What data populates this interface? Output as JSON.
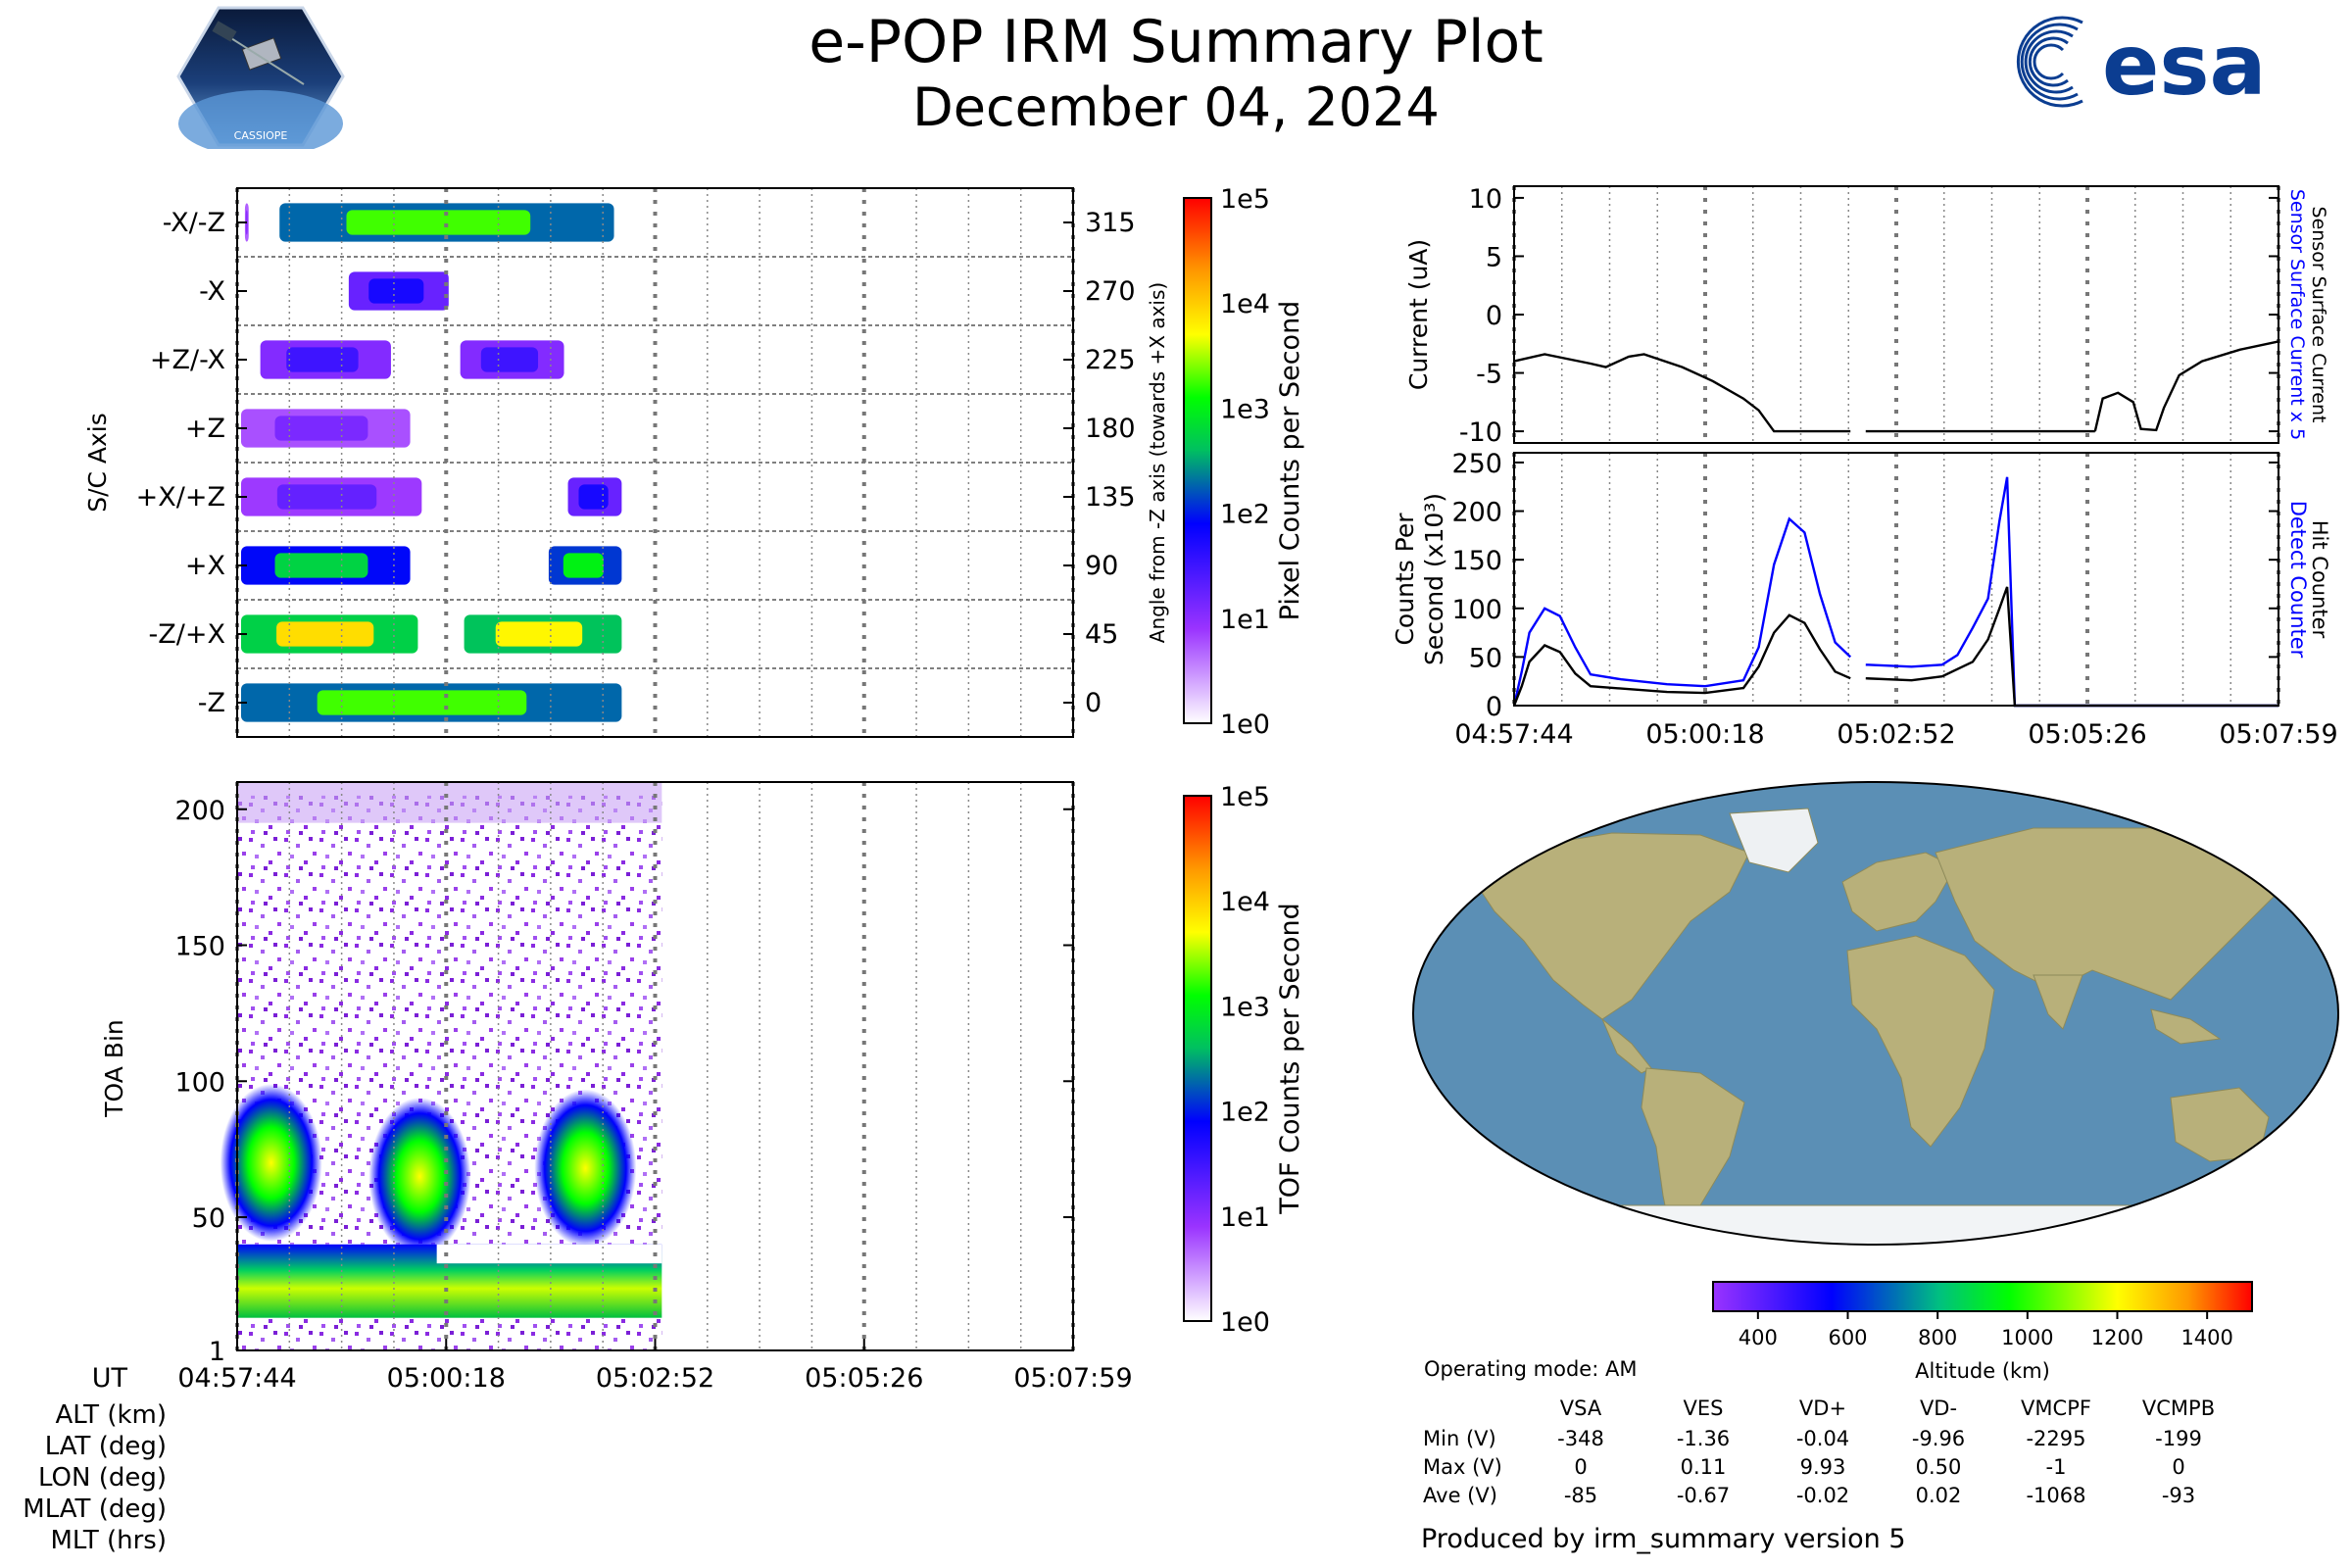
{
  "title": "e-POP IRM Summary Plot",
  "date": "December 04, 2024",
  "logo_left": "CASSIOPE",
  "logo_right": "esa",
  "colors": {
    "blue_line": "#0000ff",
    "black_line": "#000000",
    "ocean": "#5b8fb5",
    "land": "#b8b07a",
    "ice": "#f2f4f6"
  },
  "chart_data": [
    {
      "id": "pixel-spectrogram",
      "type": "heatmap",
      "ylabel": "S/C Axis",
      "ylabel_right": "Angle from -Z axis (towards +X axis)",
      "y_ticks_left": [
        "-X/-Z",
        "-X",
        "+Z/-X",
        "+Z",
        "+X/+Z",
        "+X",
        "-Z/+X",
        "-Z"
      ],
      "y_ticks_right": [
        "315",
        "270",
        "225",
        "180",
        "135",
        "90",
        "45",
        "0"
      ],
      "colorbar_label": "Pixel Counts per Second",
      "colorbar_ticks": [
        "1e5",
        "1e4",
        "1e3",
        "1e2",
        "1e1",
        "1e0"
      ],
      "rows": [
        {
          "axis": "-X/-Z",
          "intervals": [
            [
              0.01,
              0.03,
              0.2
            ],
            [
              0.1,
              0.98,
              0.65
            ]
          ]
        },
        {
          "axis": "-X",
          "intervals": [
            [
              0.28,
              0.55,
              0.35
            ]
          ]
        },
        {
          "axis": "+Z/-X",
          "intervals": [
            [
              0.05,
              0.4,
              0.3
            ],
            [
              0.57,
              0.85,
              0.3
            ]
          ]
        },
        {
          "axis": "+Z",
          "intervals": [
            [
              0.0,
              0.45,
              0.22
            ]
          ]
        },
        {
          "axis": "+X/+Z",
          "intervals": [
            [
              0.0,
              0.48,
              0.25
            ],
            [
              0.85,
              1.0,
              0.35
            ]
          ]
        },
        {
          "axis": "+X",
          "intervals": [
            [
              0.0,
              0.45,
              0.55
            ],
            [
              0.8,
              1.0,
              0.6
            ]
          ]
        },
        {
          "axis": "-Z/+X",
          "intervals": [
            [
              0.0,
              0.47,
              0.78
            ],
            [
              0.58,
              1.0,
              0.75
            ]
          ]
        },
        {
          "axis": "-Z",
          "intervals": [
            [
              0.0,
              1.0,
              0.65
            ]
          ]
        }
      ]
    },
    {
      "id": "tof-spectrogram",
      "type": "heatmap",
      "ylabel": "TOA Bin",
      "y_range": [
        1,
        210
      ],
      "y_ticks": [
        "200",
        "150",
        "100",
        "50",
        "1"
      ],
      "x_ticks": [
        "04:57:44",
        "05:00:18",
        "05:02:52",
        "05:05:26",
        "05:07:59"
      ],
      "x_prefix": "UT",
      "data_end_fraction": 0.508,
      "colorbar_label": "TOF Counts per Second",
      "colorbar_ticks": [
        "1e5",
        "1e4",
        "1e3",
        "1e2",
        "1e1",
        "1e0"
      ]
    },
    {
      "id": "current-plot",
      "type": "line",
      "ylabel": "Current (uA)",
      "ylim": [
        -11,
        11
      ],
      "y_ticks": [
        "10",
        "5",
        "0",
        "-5",
        "-10"
      ],
      "right_label_blue": "Sensor Surface Current x 5",
      "right_label_black": "Sensor Surface Current",
      "series": [
        {
          "name": "Sensor Surface Current",
          "segments": [
            [
              [
                0,
                -4
              ],
              [
                0.04,
                -3.4
              ],
              [
                0.1,
                -4.2
              ],
              [
                0.12,
                -4.5
              ],
              [
                0.15,
                -3.6
              ],
              [
                0.17,
                -3.4
              ],
              [
                0.22,
                -4.5
              ],
              [
                0.26,
                -5.7
              ],
              [
                0.3,
                -7.2
              ],
              [
                0.32,
                -8.2
              ],
              [
                0.34,
                -10
              ],
              [
                0.44,
                -10
              ]
            ],
            [
              [
                0.46,
                -10
              ],
              [
                0.76,
                -10
              ]
            ],
            [
              [
                0.76,
                -10
              ],
              [
                0.77,
                -7.2
              ],
              [
                0.79,
                -6.7
              ],
              [
                0.81,
                -7.5
              ],
              [
                0.82,
                -9.8
              ],
              [
                0.84,
                -9.9
              ],
              [
                0.85,
                -8
              ],
              [
                0.87,
                -5.2
              ],
              [
                0.9,
                -4
              ],
              [
                0.95,
                -3
              ],
              [
                1.0,
                -2.3
              ]
            ]
          ]
        }
      ]
    },
    {
      "id": "counts-plot",
      "type": "line",
      "ylabel": "Counts Per Second (x10³)",
      "ylim": [
        0,
        260
      ],
      "y_ticks": [
        "250",
        "200",
        "150",
        "100",
        "50",
        "0"
      ],
      "x_ticks": [
        "04:57:44",
        "05:00:18",
        "05:02:52",
        "05:05:26",
        "05:07:59"
      ],
      "right_label_blue": "Detect Counter",
      "right_label_black": "Hit Counter",
      "series": [
        {
          "name": "Detect Counter",
          "color": "blue",
          "segments": [
            [
              [
                0.0,
                0
              ],
              [
                0.01,
                35
              ],
              [
                0.02,
                75
              ],
              [
                0.04,
                100
              ],
              [
                0.06,
                92
              ],
              [
                0.08,
                60
              ],
              [
                0.1,
                32
              ],
              [
                0.14,
                27
              ],
              [
                0.2,
                22
              ],
              [
                0.25,
                20
              ],
              [
                0.3,
                26
              ],
              [
                0.32,
                60
              ],
              [
                0.34,
                145
              ],
              [
                0.36,
                192
              ],
              [
                0.38,
                178
              ],
              [
                0.4,
                115
              ],
              [
                0.42,
                65
              ],
              [
                0.44,
                50
              ]
            ],
            [
              [
                0.46,
                42
              ],
              [
                0.52,
                40
              ],
              [
                0.56,
                42
              ],
              [
                0.58,
                52
              ],
              [
                0.6,
                80
              ],
              [
                0.62,
                110
              ],
              [
                0.635,
                190
              ],
              [
                0.645,
                235
              ],
              [
                0.655,
                0
              ],
              [
                1.0,
                0
              ]
            ]
          ]
        },
        {
          "name": "Hit Counter",
          "color": "black",
          "segments": [
            [
              [
                0.0,
                0
              ],
              [
                0.01,
                20
              ],
              [
                0.02,
                45
              ],
              [
                0.04,
                62
              ],
              [
                0.06,
                55
              ],
              [
                0.08,
                33
              ],
              [
                0.1,
                20
              ],
              [
                0.2,
                14
              ],
              [
                0.25,
                13
              ],
              [
                0.3,
                18
              ],
              [
                0.32,
                40
              ],
              [
                0.34,
                75
              ],
              [
                0.36,
                93
              ],
              [
                0.38,
                85
              ],
              [
                0.4,
                58
              ],
              [
                0.42,
                35
              ],
              [
                0.44,
                28
              ]
            ],
            [
              [
                0.46,
                28
              ],
              [
                0.52,
                26
              ],
              [
                0.56,
                30
              ],
              [
                0.6,
                45
              ],
              [
                0.62,
                68
              ],
              [
                0.635,
                100
              ],
              [
                0.645,
                122
              ],
              [
                0.655,
                0
              ],
              [
                1.0,
                0
              ]
            ]
          ]
        }
      ]
    },
    {
      "id": "altitude-colorbar",
      "type": "bar",
      "xlabel": "Altitude (km)",
      "range": [
        300,
        1500
      ],
      "ticks": [
        "400",
        "600",
        "800",
        "1000",
        "1200",
        "1400"
      ]
    }
  ],
  "ephemeris_labels": [
    "ALT (km)",
    "LAT (deg)",
    "LON (deg)",
    "MLAT (deg)",
    "MLT (hrs)"
  ],
  "operating_mode": "Operating mode: AM",
  "voltage_table": {
    "columns": [
      "VSA",
      "VES",
      "VD+",
      "VD-",
      "VMCPF",
      "VCMPB"
    ],
    "rows": [
      {
        "label": "Min (V)",
        "values": [
          "-348",
          "-1.36",
          "-0.04",
          "-9.96",
          "-2295",
          "-199"
        ]
      },
      {
        "label": "Max (V)",
        "values": [
          "0",
          "0.11",
          "9.93",
          "0.50",
          "-1",
          "0"
        ]
      },
      {
        "label": "Ave (V)",
        "values": [
          "-85",
          "-0.67",
          "-0.02",
          "0.02",
          "-1068",
          "-93"
        ]
      }
    ]
  },
  "footer": "Produced by irm_summary version 5"
}
